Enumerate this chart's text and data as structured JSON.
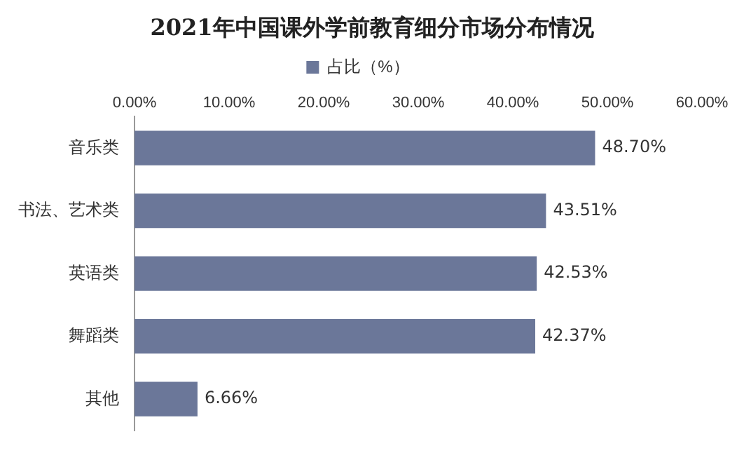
{
  "chart_data": {
    "type": "bar",
    "orientation": "horizontal",
    "title": "2021年中国课外学前教育细分市场分布情况",
    "categories": [
      "音乐类",
      "书法、艺术类",
      "英语类",
      "舞蹈类",
      "其他"
    ],
    "series": [
      {
        "name": "占比（%）",
        "color": "#6b7799",
        "values": [
          48.7,
          43.51,
          42.53,
          42.37,
          6.66
        ],
        "value_labels": [
          "48.70%",
          "43.51%",
          "42.53%",
          "42.37%",
          "6.66%"
        ]
      }
    ],
    "xlim": [
      0,
      60
    ],
    "xticks": [
      {
        "value": 0,
        "label": "0.00%"
      },
      {
        "value": 10,
        "label": "10.00%"
      },
      {
        "value": 20,
        "label": "20.00%"
      },
      {
        "value": 30,
        "label": "30.00%"
      },
      {
        "value": 40,
        "label": "40.00%"
      },
      {
        "value": 50,
        "label": "50.00%"
      },
      {
        "value": 60,
        "label": "60.00%"
      }
    ],
    "grid": false,
    "legend": "top"
  }
}
